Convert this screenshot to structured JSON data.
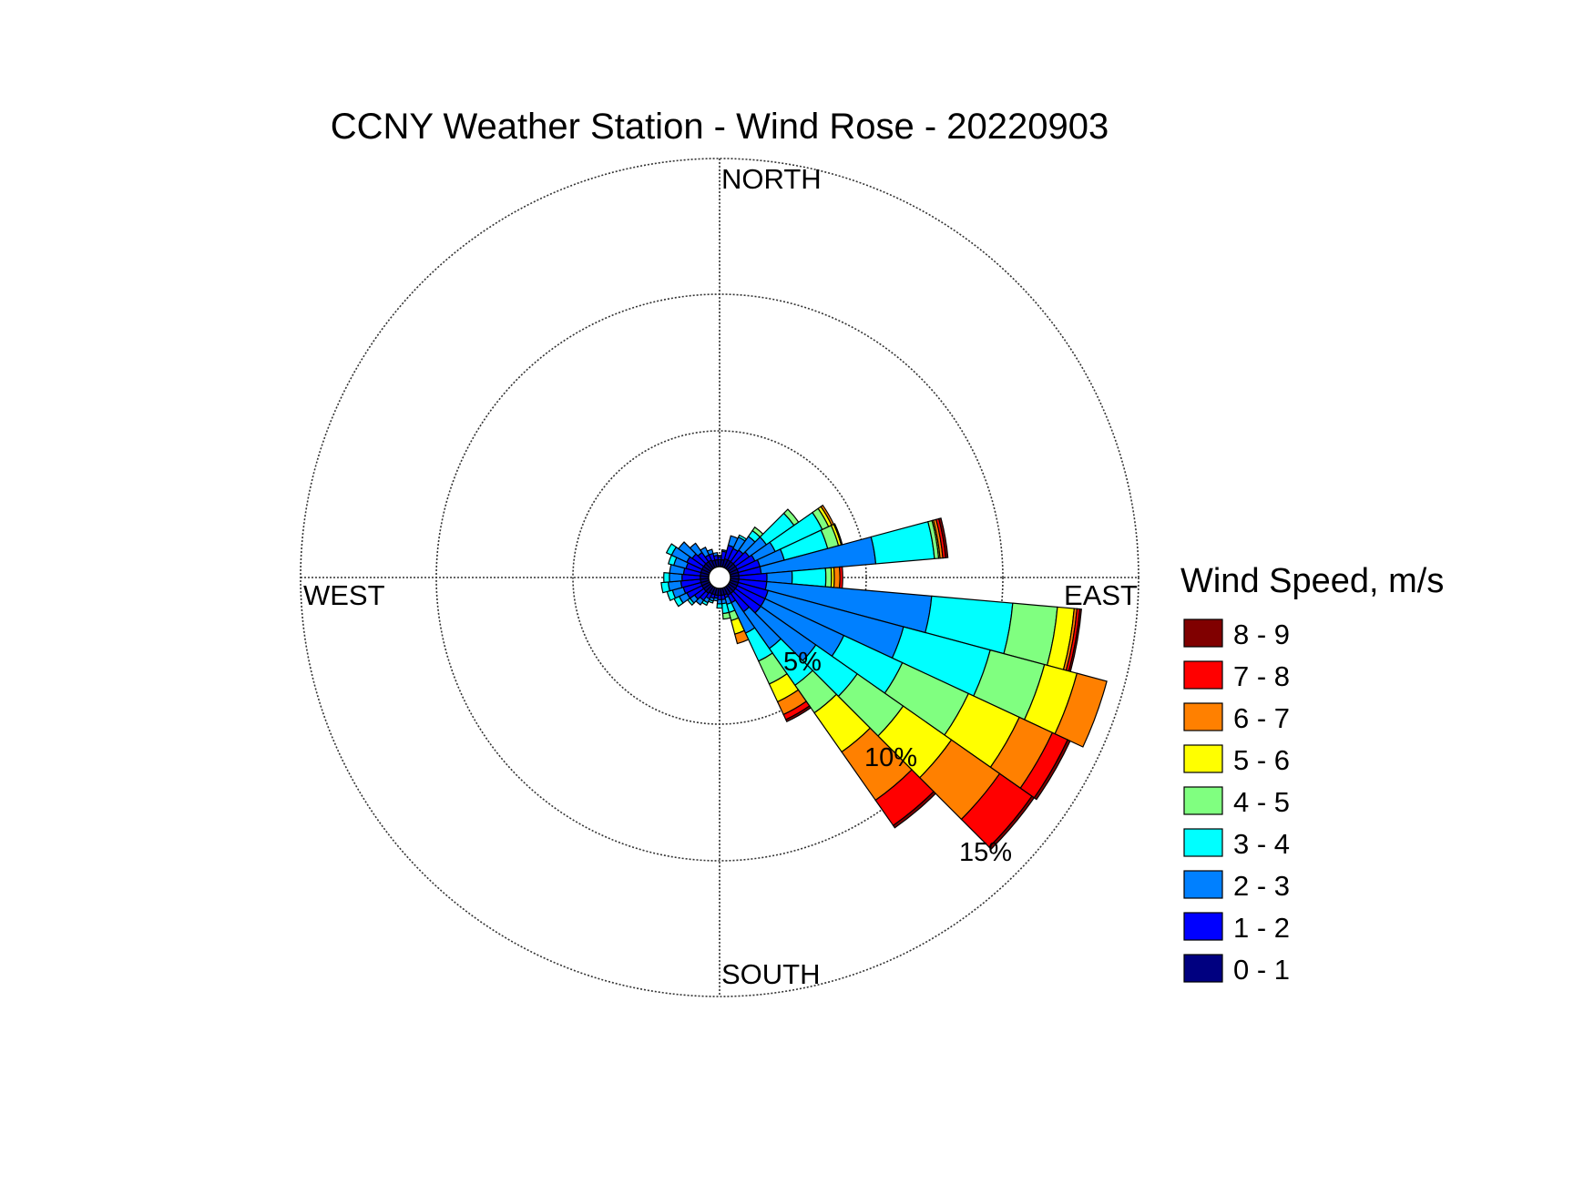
{
  "chart_data": {
    "type": "windrose",
    "title": "CCNY Weather Station - Wind Rose - 20220903",
    "direction_labels": {
      "north": "NORTH",
      "east": "EAST",
      "south": "SOUTH",
      "west": "WEST"
    },
    "radial_axis": {
      "unit": "%",
      "ticks": [
        5,
        10,
        15
      ],
      "tick_labels": [
        "5%",
        "10%",
        "15%"
      ],
      "max": 15
    },
    "grid": true,
    "legend": {
      "title": "Wind Speed, m/s",
      "placement": "right",
      "entries": [
        {
          "label": "8 - 9",
          "color": "#800000"
        },
        {
          "label": "7 - 8",
          "color": "#ff0000"
        },
        {
          "label": "6 - 7",
          "color": "#ff8000"
        },
        {
          "label": "5 - 6",
          "color": "#ffff00"
        },
        {
          "label": "4 - 5",
          "color": "#80ff80"
        },
        {
          "label": "3 - 4",
          "color": "#00ffff"
        },
        {
          "label": "2 - 3",
          "color": "#0080ff"
        },
        {
          "label": "1 - 2",
          "color": "#0000ff"
        },
        {
          "label": "0 - 1",
          "color": "#000080"
        }
      ]
    },
    "speed_bins": [
      "0 - 1",
      "1 - 2",
      "2 - 3",
      "3 - 4",
      "4 - 5",
      "5 - 6",
      "6 - 7",
      "7 - 8",
      "8 - 9"
    ],
    "sector_width_deg": 10,
    "sectors": [
      {
        "direction_deg": 0,
        "cumulative_percent": [
          0.25,
          0.35,
          0.4
        ]
      },
      {
        "direction_deg": 10,
        "cumulative_percent": [
          0.25,
          0.55,
          0.6
        ]
      },
      {
        "direction_deg": 20,
        "cumulative_percent": [
          0.3,
          0.8,
          1.15
        ]
      },
      {
        "direction_deg": 30,
        "cumulative_percent": [
          0.3,
          0.75,
          1.2,
          1.28
        ]
      },
      {
        "direction_deg": 40,
        "cumulative_percent": [
          0.3,
          0.8,
          1.4,
          1.65,
          1.8
        ]
      },
      {
        "direction_deg": 50,
        "cumulative_percent": [
          0.3,
          0.9,
          1.65,
          2.85,
          3.05
        ]
      },
      {
        "direction_deg": 60,
        "cumulative_percent": [
          0.3,
          1.0,
          1.8,
          3.65,
          3.9,
          4.02,
          4.1
        ]
      },
      {
        "direction_deg": 70,
        "cumulative_percent": [
          0.3,
          1.1,
          2.0,
          3.6,
          4.0,
          4.1,
          4.14
        ]
      },
      {
        "direction_deg": 80,
        "cumulative_percent": [
          0.3,
          1.1,
          5.2,
          7.3,
          7.45,
          7.5,
          7.6,
          7.7,
          7.78
        ]
      },
      {
        "direction_deg": 90,
        "cumulative_percent": [
          0.3,
          1.3,
          2.2,
          3.4,
          3.6,
          3.7,
          3.9,
          4.0
        ]
      },
      {
        "direction_deg": 100,
        "cumulative_percent": [
          0.3,
          1.3,
          7.2,
          10.1,
          11.7,
          12.3,
          12.4,
          12.5,
          12.56
        ]
      },
      {
        "direction_deg": 110,
        "cumulative_percent": [
          0.3,
          1.4,
          6.4,
          9.6,
          11.6,
          12.8,
          13.9
        ]
      },
      {
        "direction_deg": 120,
        "cumulative_percent": [
          0.3,
          1.4,
          4.5,
          6.8,
          9.4,
          11.4,
          12.7,
          13.3,
          13.4
        ]
      },
      {
        "direction_deg": 130,
        "cumulative_percent": [
          0.3,
          1.4,
          3.8,
          5.6,
          7.6,
          9.7,
          11.8,
          13.2,
          13.3
        ]
      },
      {
        "direction_deg": 140,
        "cumulative_percent": [
          0.3,
          1.1,
          2.7,
          4.3,
          5.5,
          7.2,
          9.3,
          10.4,
          10.5
        ]
      },
      {
        "direction_deg": 150,
        "cumulative_percent": [
          0.3,
          0.6,
          1.8,
          2.9,
          3.8,
          4.5,
          5.0,
          5.2,
          5.28
        ]
      },
      {
        "direction_deg": 160,
        "cumulative_percent": [
          0.25,
          0.35,
          0.6,
          0.9,
          1.2,
          1.7,
          2.05
        ]
      },
      {
        "direction_deg": 170,
        "cumulative_percent": [
          0.25,
          0.4,
          0.55,
          0.9,
          1.1
        ]
      },
      {
        "direction_deg": 180,
        "cumulative_percent": [
          0.25,
          0.4,
          0.55,
          0.7
        ]
      },
      {
        "direction_deg": 190,
        "cumulative_percent": [
          0.25,
          0.35,
          0.45
        ]
      },
      {
        "direction_deg": 200,
        "cumulative_percent": [
          0.25,
          0.38,
          0.48,
          0.55
        ]
      },
      {
        "direction_deg": 210,
        "cumulative_percent": [
          0.25,
          0.45,
          0.6,
          0.7
        ]
      },
      {
        "direction_deg": 220,
        "cumulative_percent": [
          0.3,
          0.6,
          0.8
        ]
      },
      {
        "direction_deg": 230,
        "cumulative_percent": [
          0.3,
          0.7,
          0.9,
          1.0
        ]
      },
      {
        "direction_deg": 240,
        "cumulative_percent": [
          0.3,
          0.9,
          1.2,
          1.4
        ]
      },
      {
        "direction_deg": 250,
        "cumulative_percent": [
          0.3,
          0.95,
          1.35,
          1.55
        ]
      },
      {
        "direction_deg": 260,
        "cumulative_percent": [
          0.3,
          1.0,
          1.45,
          1.7
        ]
      },
      {
        "direction_deg": 270,
        "cumulative_percent": [
          0.3,
          0.95,
          1.4,
          1.6
        ]
      },
      {
        "direction_deg": 280,
        "cumulative_percent": [
          0.3,
          0.9,
          1.4
        ]
      },
      {
        "direction_deg": 290,
        "cumulative_percent": [
          0.3,
          0.85,
          1.3,
          1.5
        ]
      },
      {
        "direction_deg": 300,
        "cumulative_percent": [
          0.3,
          0.9,
          1.5,
          1.7
        ]
      },
      {
        "direction_deg": 310,
        "cumulative_percent": [
          0.3,
          0.8,
          1.4
        ]
      },
      {
        "direction_deg": 320,
        "cumulative_percent": [
          0.3,
          0.7,
          1.1
        ]
      },
      {
        "direction_deg": 330,
        "cumulative_percent": [
          0.3,
          0.5,
          0.8
        ]
      },
      {
        "direction_deg": 340,
        "cumulative_percent": [
          0.25,
          0.5,
          0.65
        ]
      },
      {
        "direction_deg": 350,
        "cumulative_percent": [
          0.25,
          0.4,
          0.5
        ]
      }
    ]
  }
}
